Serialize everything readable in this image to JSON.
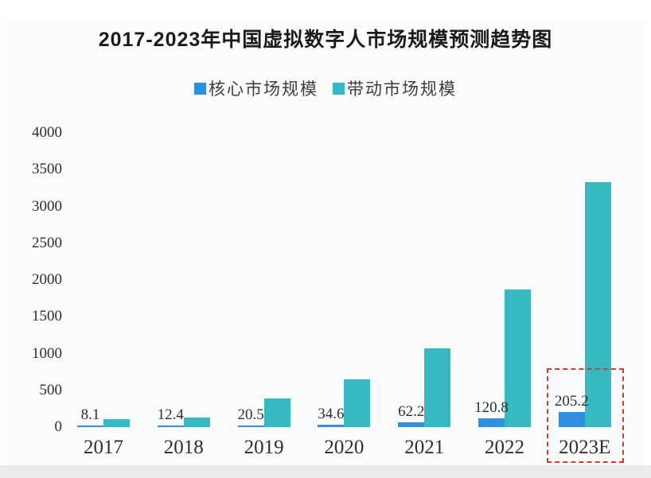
{
  "title": "2017-2023年中国虚拟数字人市场规模预测趋势图",
  "chart_data": {
    "type": "bar",
    "title": "2017-2023年中国虚拟数字人市场规模预测趋势图",
    "xlabel": "",
    "ylabel": "",
    "categories": [
      "2017",
      "2018",
      "2019",
      "2020",
      "2021",
      "2022",
      "2023E"
    ],
    "series": [
      {
        "name": "核心市场规模",
        "color": "#2f90e2",
        "values": [
          8.1,
          12.4,
          20.5,
          34.6,
          62.2,
          120.8,
          205.2
        ],
        "value_labels": [
          "8.1",
          "12.4",
          "20.5",
          "34.6",
          "62.2",
          "120.8",
          "205.2"
        ],
        "labels_shown": true
      },
      {
        "name": "带动市场规模",
        "color": "#36b9c0",
        "values": [
          108,
          135,
          390,
          650,
          1075,
          1870,
          3335
        ],
        "labels_shown": false,
        "note": "values estimated from axis, no data labels printed"
      }
    ],
    "yticks": [
      0,
      500,
      1000,
      1500,
      2000,
      2500,
      3000,
      3500,
      4000
    ],
    "ylim": [
      0,
      4000
    ],
    "grid": false,
    "legend_position": "top",
    "highlight": {
      "category": "2023E",
      "style": "red-dashed-box",
      "color": "#d8392d"
    }
  }
}
